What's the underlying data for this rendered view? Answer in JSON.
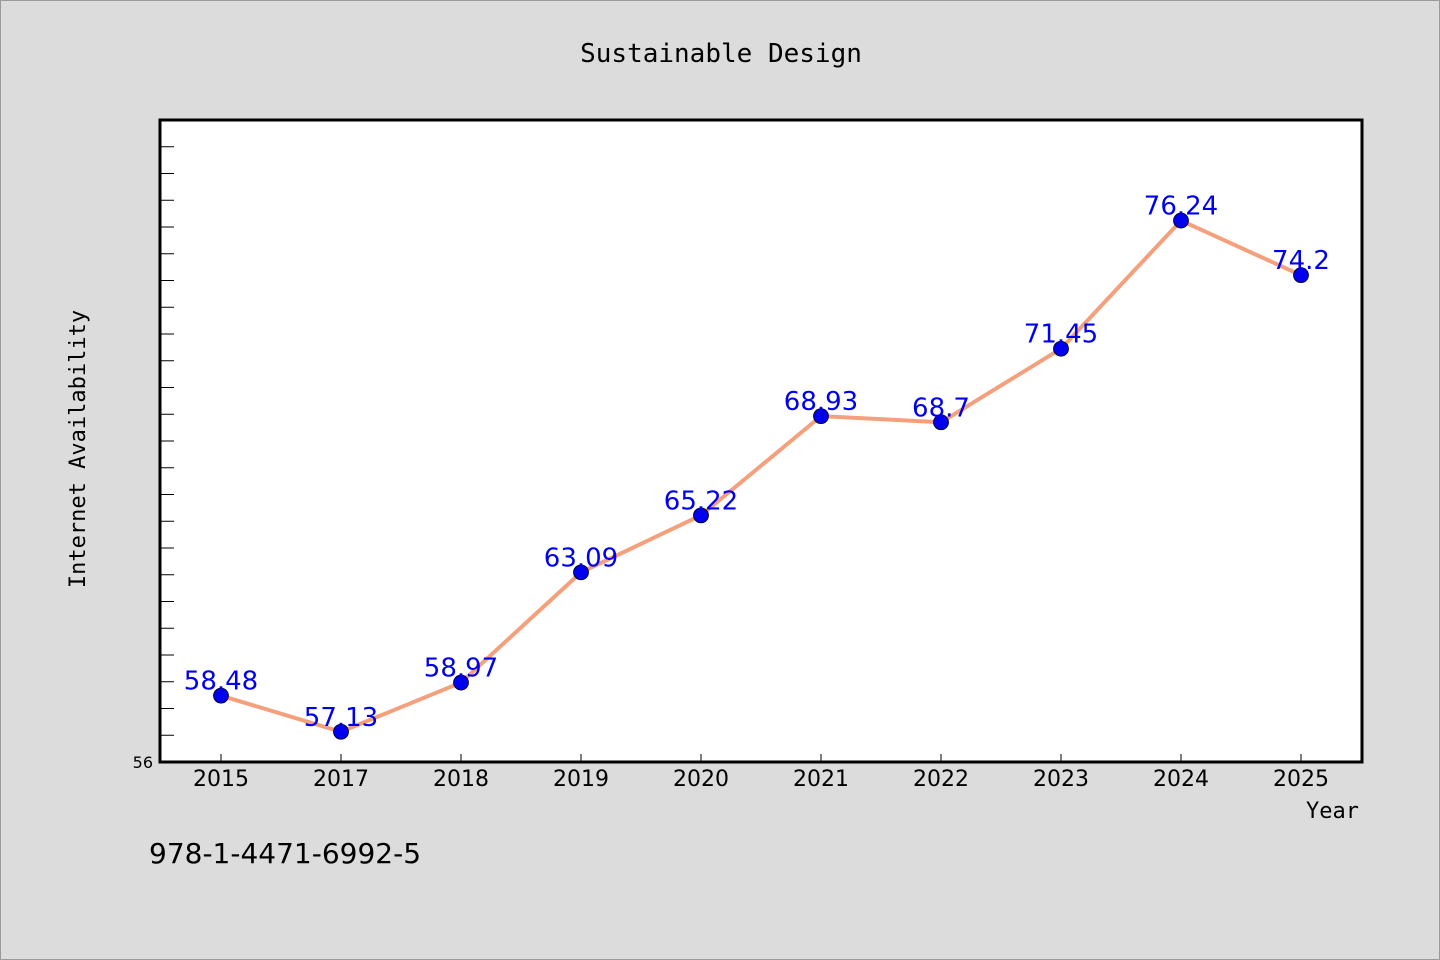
{
  "chart_data": {
    "type": "line",
    "title": "Sustainable Design",
    "xlabel": "Year",
    "ylabel": "Internet Availability",
    "categories": [
      "2015",
      "2017",
      "2018",
      "2019",
      "2020",
      "2021",
      "2022",
      "2023",
      "2024",
      "2025"
    ],
    "series": [
      {
        "values": [
          58.48,
          57.13,
          58.97,
          63.09,
          65.22,
          68.93,
          68.7,
          71.45,
          76.24,
          74.2
        ],
        "data_labels": [
          "58.48",
          "57.13",
          "58.97",
          "63.09",
          "65.22",
          "68.93",
          "68.7",
          "71.45",
          "76.24",
          "74.2"
        ],
        "line_color": "#f4a07c",
        "marker_color": "#0000ee"
      }
    ],
    "ylim": [
      56,
      80
    ],
    "yticks_labeled": [
      "56"
    ],
    "grid": false,
    "legend": "none"
  },
  "annotation": "978-1-4471-6992-5",
  "colors": {
    "background": "#dcdcdc",
    "plot_background": "#ffffff",
    "axis": "#000000",
    "label_color": "#0000ee"
  }
}
